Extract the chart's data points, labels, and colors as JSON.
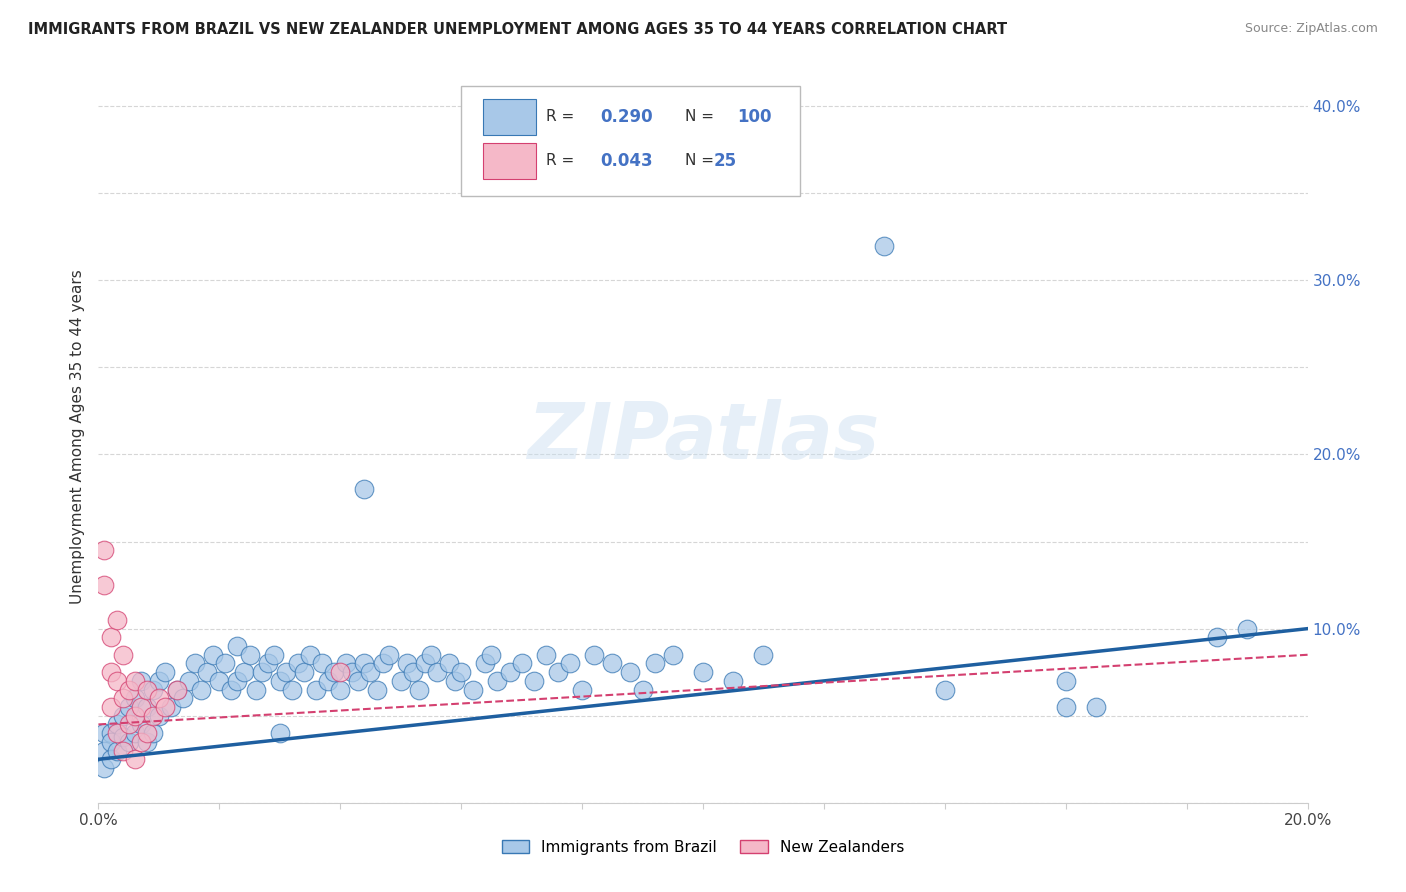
{
  "title": "IMMIGRANTS FROM BRAZIL VS NEW ZEALANDER UNEMPLOYMENT AMONG AGES 35 TO 44 YEARS CORRELATION CHART",
  "source": "Source: ZipAtlas.com",
  "ylabel": "Unemployment Among Ages 35 to 44 years",
  "xlim": [
    0.0,
    0.2
  ],
  "ylim": [
    0.0,
    0.42
  ],
  "xticks": [
    0.0,
    0.02,
    0.04,
    0.06,
    0.08,
    0.1,
    0.12,
    0.14,
    0.16,
    0.18,
    0.2
  ],
  "yticks": [
    0.0,
    0.05,
    0.1,
    0.15,
    0.2,
    0.25,
    0.3,
    0.35,
    0.4
  ],
  "blue_color": "#a8c8e8",
  "blue_edge": "#3878b4",
  "pink_color": "#f5b8c8",
  "pink_edge": "#d44070",
  "blue_line_color": "#1e5fa0",
  "pink_line_color": "#d44070",
  "R_blue": 0.29,
  "N_blue": 100,
  "R_pink": 0.043,
  "N_pink": 25,
  "watermark": "ZIPatlas",
  "legend_label_blue": "Immigrants from Brazil",
  "legend_label_pink": "New Zealanders",
  "blue_scatter": [
    [
      0.001,
      0.04
    ],
    [
      0.001,
      0.03
    ],
    [
      0.001,
      0.02
    ],
    [
      0.002,
      0.04
    ],
    [
      0.002,
      0.035
    ],
    [
      0.002,
      0.025
    ],
    [
      0.003,
      0.045
    ],
    [
      0.003,
      0.03
    ],
    [
      0.004,
      0.05
    ],
    [
      0.004,
      0.038
    ],
    [
      0.005,
      0.055
    ],
    [
      0.005,
      0.035
    ],
    [
      0.006,
      0.06
    ],
    [
      0.006,
      0.04
    ],
    [
      0.007,
      0.07
    ],
    [
      0.007,
      0.045
    ],
    [
      0.008,
      0.055
    ],
    [
      0.008,
      0.035
    ],
    [
      0.009,
      0.065
    ],
    [
      0.009,
      0.04
    ],
    [
      0.01,
      0.07
    ],
    [
      0.01,
      0.05
    ],
    [
      0.011,
      0.075
    ],
    [
      0.012,
      0.055
    ],
    [
      0.013,
      0.065
    ],
    [
      0.014,
      0.06
    ],
    [
      0.015,
      0.07
    ],
    [
      0.016,
      0.08
    ],
    [
      0.017,
      0.065
    ],
    [
      0.018,
      0.075
    ],
    [
      0.019,
      0.085
    ],
    [
      0.02,
      0.07
    ],
    [
      0.021,
      0.08
    ],
    [
      0.022,
      0.065
    ],
    [
      0.023,
      0.09
    ],
    [
      0.023,
      0.07
    ],
    [
      0.024,
      0.075
    ],
    [
      0.025,
      0.085
    ],
    [
      0.026,
      0.065
    ],
    [
      0.027,
      0.075
    ],
    [
      0.028,
      0.08
    ],
    [
      0.029,
      0.085
    ],
    [
      0.03,
      0.07
    ],
    [
      0.03,
      0.04
    ],
    [
      0.031,
      0.075
    ],
    [
      0.032,
      0.065
    ],
    [
      0.033,
      0.08
    ],
    [
      0.034,
      0.075
    ],
    [
      0.035,
      0.085
    ],
    [
      0.036,
      0.065
    ],
    [
      0.037,
      0.08
    ],
    [
      0.038,
      0.07
    ],
    [
      0.039,
      0.075
    ],
    [
      0.04,
      0.065
    ],
    [
      0.041,
      0.08
    ],
    [
      0.042,
      0.075
    ],
    [
      0.043,
      0.07
    ],
    [
      0.044,
      0.08
    ],
    [
      0.044,
      0.18
    ],
    [
      0.045,
      0.075
    ],
    [
      0.046,
      0.065
    ],
    [
      0.047,
      0.08
    ],
    [
      0.048,
      0.085
    ],
    [
      0.05,
      0.07
    ],
    [
      0.051,
      0.08
    ],
    [
      0.052,
      0.075
    ],
    [
      0.053,
      0.065
    ],
    [
      0.054,
      0.08
    ],
    [
      0.055,
      0.085
    ],
    [
      0.056,
      0.075
    ],
    [
      0.058,
      0.08
    ],
    [
      0.059,
      0.07
    ],
    [
      0.06,
      0.075
    ],
    [
      0.062,
      0.065
    ],
    [
      0.064,
      0.08
    ],
    [
      0.065,
      0.085
    ],
    [
      0.066,
      0.07
    ],
    [
      0.068,
      0.075
    ],
    [
      0.07,
      0.08
    ],
    [
      0.072,
      0.07
    ],
    [
      0.074,
      0.085
    ],
    [
      0.076,
      0.075
    ],
    [
      0.078,
      0.08
    ],
    [
      0.08,
      0.065
    ],
    [
      0.082,
      0.085
    ],
    [
      0.085,
      0.08
    ],
    [
      0.088,
      0.075
    ],
    [
      0.09,
      0.065
    ],
    [
      0.092,
      0.08
    ],
    [
      0.095,
      0.085
    ],
    [
      0.1,
      0.075
    ],
    [
      0.105,
      0.07
    ],
    [
      0.11,
      0.085
    ],
    [
      0.13,
      0.32
    ],
    [
      0.14,
      0.065
    ],
    [
      0.16,
      0.055
    ],
    [
      0.16,
      0.07
    ],
    [
      0.165,
      0.055
    ],
    [
      0.185,
      0.095
    ],
    [
      0.19,
      0.1
    ]
  ],
  "pink_scatter": [
    [
      0.001,
      0.145
    ],
    [
      0.001,
      0.125
    ],
    [
      0.002,
      0.095
    ],
    [
      0.002,
      0.075
    ],
    [
      0.002,
      0.055
    ],
    [
      0.003,
      0.105
    ],
    [
      0.003,
      0.07
    ],
    [
      0.003,
      0.04
    ],
    [
      0.004,
      0.085
    ],
    [
      0.004,
      0.06
    ],
    [
      0.004,
      0.03
    ],
    [
      0.005,
      0.065
    ],
    [
      0.005,
      0.045
    ],
    [
      0.006,
      0.07
    ],
    [
      0.006,
      0.05
    ],
    [
      0.006,
      0.025
    ],
    [
      0.007,
      0.055
    ],
    [
      0.007,
      0.035
    ],
    [
      0.008,
      0.065
    ],
    [
      0.008,
      0.04
    ],
    [
      0.009,
      0.05
    ],
    [
      0.01,
      0.06
    ],
    [
      0.011,
      0.055
    ],
    [
      0.013,
      0.065
    ],
    [
      0.04,
      0.075
    ]
  ],
  "blue_trend": [
    0.0,
    0.2,
    0.025,
    0.1
  ],
  "pink_trend": [
    0.0,
    0.2,
    0.045,
    0.085
  ]
}
